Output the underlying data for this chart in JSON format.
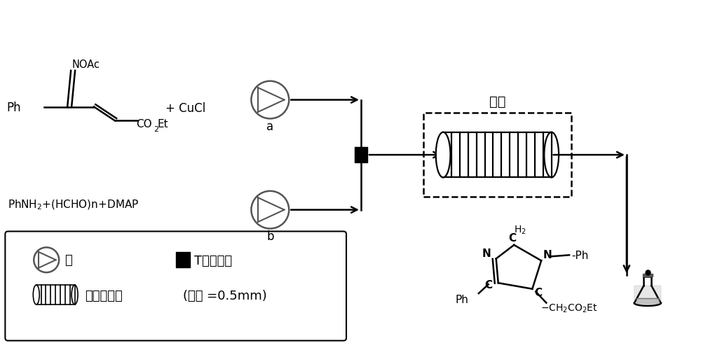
{
  "bg_color": "#ffffff",
  "oil_bath_label": "油浴",
  "legend_pump": "泵",
  "legend_mixer_label": "T型混合器",
  "legend_reactor": "管式反应器",
  "legend_diameter": "(管径 =0.5mm)",
  "label_a": "a",
  "label_b": "b",
  "cucl_text": "+ CuCl",
  "reagent_b_text": "PhNH$_2$+(HCHO)n+DMAP"
}
